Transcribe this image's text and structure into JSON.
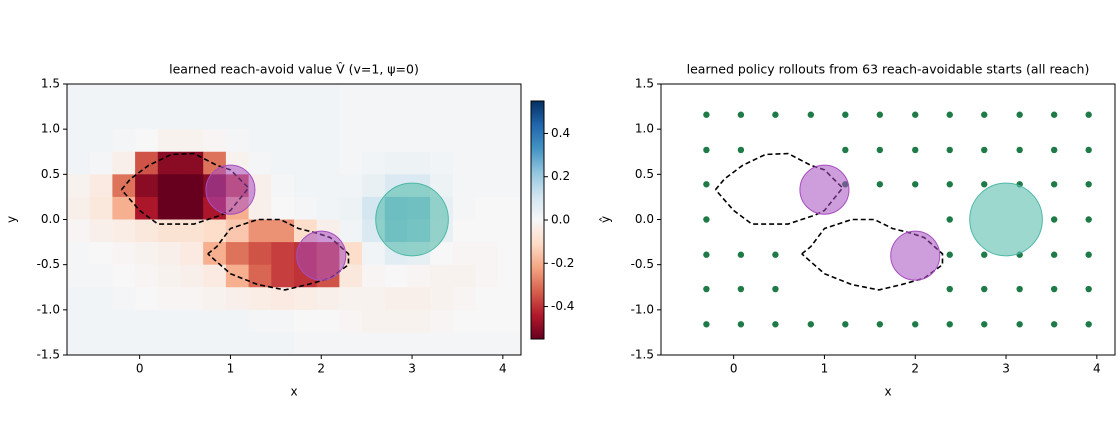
{
  "chart_data": [
    {
      "type": "heatmap",
      "title": "learned reach-avoid value  V̂  (v=1, ψ=0)",
      "xlabel": "x",
      "ylabel": "y",
      "xlim": [
        -0.8,
        4.2
      ],
      "ylim": [
        -1.5,
        1.5
      ],
      "xticks": [
        0,
        1,
        2,
        3,
        4
      ],
      "yticks": [
        -1.5,
        {
          "value": -1,
          "label": "-1.0"
        },
        -0.5,
        {
          "value": 0,
          "label": "0.0"
        },
        0.5,
        {
          "value": 1,
          "label": "1.0"
        },
        1.5
      ],
      "xbins": [
        -0.8,
        -0.55,
        -0.3,
        -0.05,
        0.2,
        0.45,
        0.7,
        0.95,
        1.2,
        1.45,
        1.7,
        1.95,
        2.2,
        2.45,
        2.7,
        2.95,
        3.2,
        3.45,
        3.7,
        3.95,
        4.2
      ],
      "ybins": [
        1.5,
        1.25,
        1,
        0.75,
        0.5,
        0.25,
        0,
        -0.25,
        -0.5,
        -0.75,
        -1,
        -1.25,
        -1.5
      ],
      "z": [
        [
          0.02,
          0.02,
          0.02,
          0.02,
          0.02,
          0.02,
          0.02,
          0.02,
          0.02,
          0.02,
          0.02,
          0.02,
          0.01,
          0.01,
          0.01,
          0.01,
          0.01,
          0.01,
          0.01,
          0.01
        ],
        [
          0.02,
          0.02,
          0.02,
          0.02,
          0.02,
          0.02,
          0.02,
          0.02,
          0.02,
          0.02,
          0.02,
          0.02,
          0.01,
          0.01,
          0.01,
          0.01,
          0.01,
          0.01,
          0.01,
          0.01
        ],
        [
          0.02,
          0.02,
          0.01,
          0,
          -0.02,
          -0.02,
          -0.01,
          0.01,
          0.02,
          0.02,
          0.02,
          0.02,
          0.01,
          0.01,
          0.01,
          0.01,
          0.01,
          0.01,
          0.01,
          0.01
        ],
        [
          0.02,
          0.01,
          -0.03,
          -0.35,
          -0.5,
          -0.5,
          -0.3,
          -0.02,
          0.01,
          0.02,
          0.02,
          0.02,
          0.01,
          0.02,
          0.03,
          0.03,
          0.02,
          0.01,
          0.01,
          0.01
        ],
        [
          -0.02,
          -0.05,
          -0.3,
          -0.5,
          -0.55,
          -0.55,
          -0.5,
          -0.35,
          -0.03,
          0.01,
          0.02,
          0.02,
          0.02,
          0.04,
          0.08,
          0.08,
          0.03,
          0.01,
          0.01,
          0.01
        ],
        [
          -0.03,
          -0.06,
          -0.2,
          -0.45,
          -0.55,
          -0.55,
          -0.45,
          -0.2,
          -0.03,
          0,
          0.01,
          0.02,
          0.03,
          0.1,
          0.22,
          0.2,
          0.05,
          0.01,
          0,
          0
        ],
        [
          -0.01,
          -0.03,
          -0.04,
          -0.06,
          -0.08,
          -0.08,
          -0.1,
          -0.15,
          -0.25,
          -0.25,
          -0.1,
          -0.03,
          0.02,
          0.08,
          0.2,
          0.18,
          0.04,
          0,
          0,
          0
        ],
        [
          0.01,
          0,
          -0.01,
          -0.02,
          -0.03,
          -0.05,
          -0.2,
          -0.3,
          -0.35,
          -0.38,
          -0.4,
          -0.35,
          -0.1,
          0.02,
          0.06,
          0.05,
          0,
          -0.01,
          -0.01,
          0
        ],
        [
          0.01,
          0.01,
          0,
          -0.01,
          -0.02,
          -0.03,
          -0.05,
          -0.2,
          -0.32,
          -0.38,
          -0.4,
          -0.35,
          -0.06,
          -0.01,
          0,
          -0.01,
          -0.02,
          -0.02,
          -0.01,
          0
        ],
        [
          0.02,
          0.02,
          0.01,
          0,
          -0.01,
          -0.01,
          -0.02,
          -0.03,
          -0.04,
          -0.05,
          -0.04,
          -0.03,
          -0.02,
          -0.02,
          -0.03,
          -0.03,
          -0.02,
          -0.01,
          0,
          0
        ],
        [
          0.02,
          0.02,
          0.02,
          0.02,
          0.02,
          0.02,
          0.02,
          0.02,
          0.01,
          0.01,
          0,
          0,
          -0.01,
          -0.02,
          -0.02,
          -0.02,
          -0.01,
          0,
          0,
          0
        ],
        [
          0.02,
          0.02,
          0.02,
          0.02,
          0.02,
          0.02,
          0.02,
          0.02,
          0.02,
          0.02,
          0.01,
          0.01,
          0.01,
          0.01,
          0.01,
          0.01,
          0.01,
          0.01,
          0.01,
          0.01
        ]
      ],
      "colormap": "RdBu",
      "clim": [
        -0.55,
        0.55
      ],
      "cticks": [
        -0.4,
        -0.2,
        {
          "value": 0,
          "label": "0.0"
        },
        0.2,
        0.4
      ],
      "contours": [
        {
          "x": [
            -0.2,
            -0.1,
            0.1,
            0.35,
            0.6,
            0.85,
            1.0,
            1.2,
            1.0,
            0.9,
            0.6,
            0.2,
            0,
            -0.2
          ],
          "y": [
            0.33,
            0.45,
            0.6,
            0.72,
            0.73,
            0.6,
            0.55,
            0.35,
            0.1,
            0.05,
            -0.05,
            -0.05,
            0.1,
            0.33
          ]
        },
        {
          "x": [
            0.75,
            0.85,
            1.0,
            1.3,
            1.55,
            1.75,
            1.95,
            2.1,
            2.3,
            2.3,
            2.1,
            1.85,
            1.6,
            1.3,
            1.0,
            0.75
          ],
          "y": [
            -0.38,
            -0.3,
            -0.1,
            0,
            0,
            -0.1,
            -0.15,
            -0.2,
            -0.38,
            -0.5,
            -0.65,
            -0.72,
            -0.78,
            -0.72,
            -0.6,
            -0.38
          ]
        }
      ],
      "circles": [
        {
          "x": 1,
          "y": 0.33,
          "r": 0.27,
          "color": "#a64dbf"
        },
        {
          "x": 2,
          "y": -0.4,
          "r": 0.27,
          "color": "#a64dbf"
        },
        {
          "x": 3,
          "y": 0,
          "r": 0.4,
          "color": "#4db8a8"
        }
      ]
    },
    {
      "type": "scatter",
      "title": "learned policy rollouts from 63 reach-avoidable starts (all reach)",
      "xlabel": "x",
      "ylabel": "ŷ",
      "xlim": [
        -0.8,
        4.2
      ],
      "ylim": [
        -1.5,
        1.5
      ],
      "xticks": [
        0,
        1,
        2,
        3,
        4
      ],
      "yticks": [
        -1.5,
        {
          "value": -1,
          "label": "-1.0"
        },
        -0.5,
        {
          "value": 0,
          "label": "0.0"
        },
        0.5,
        {
          "value": 1,
          "label": "1.0"
        },
        1.5
      ],
      "color": "#1e7a46",
      "x": [
        -0.3,
        0.08,
        0.46,
        0.85,
        1.23,
        1.61,
        2.0,
        2.38,
        2.76,
        3.15,
        3.53,
        3.91,
        -0.3,
        0.08,
        1.23,
        1.61,
        2.0,
        2.38,
        2.76,
        3.15,
        3.53,
        3.91,
        -0.3,
        1.23,
        1.61,
        2.0,
        2.38,
        2.76,
        3.15,
        3.53,
        3.91,
        -0.3,
        2.38,
        3.53,
        3.91,
        -0.3,
        0.08,
        0.46,
        2.38,
        2.76,
        3.15,
        3.53,
        3.91,
        -0.3,
        0.08,
        0.46,
        2.38,
        2.76,
        3.15,
        3.53,
        3.91,
        -0.3,
        0.08,
        0.46,
        0.85,
        1.23,
        1.61,
        2.0,
        2.38,
        2.76,
        3.15,
        3.53,
        3.91
      ],
      "y": [
        1.16,
        1.16,
        1.16,
        1.16,
        1.16,
        1.16,
        1.16,
        1.16,
        1.16,
        1.16,
        1.16,
        1.16,
        0.77,
        0.77,
        0.77,
        0.77,
        0.77,
        0.77,
        0.77,
        0.77,
        0.77,
        0.77,
        0.39,
        0.39,
        0.39,
        0.39,
        0.39,
        0.39,
        0.39,
        0.39,
        0.39,
        0,
        0,
        0,
        0,
        -0.39,
        -0.39,
        -0.39,
        -0.39,
        -0.39,
        -0.39,
        -0.39,
        -0.39,
        -0.77,
        -0.77,
        -0.77,
        -0.77,
        -0.77,
        -0.77,
        -0.77,
        -0.77,
        -1.16,
        -1.16,
        -1.16,
        -1.16,
        -1.16,
        -1.16,
        -1.16,
        -1.16,
        -1.16,
        -1.16,
        -1.16,
        -1.16
      ],
      "contours": [
        {
          "x": [
            -0.2,
            -0.1,
            0.1,
            0.35,
            0.6,
            0.85,
            1.0,
            1.2,
            1.0,
            0.9,
            0.6,
            0.2,
            0,
            -0.2
          ],
          "y": [
            0.33,
            0.45,
            0.6,
            0.72,
            0.73,
            0.6,
            0.55,
            0.35,
            0.1,
            0.05,
            -0.05,
            -0.05,
            0.1,
            0.33
          ]
        },
        {
          "x": [
            0.75,
            0.85,
            1.0,
            1.3,
            1.55,
            1.75,
            1.95,
            2.1,
            2.3,
            2.3,
            2.1,
            1.85,
            1.6,
            1.3,
            1.0,
            0.75
          ],
          "y": [
            -0.38,
            -0.3,
            -0.1,
            0,
            0,
            -0.1,
            -0.15,
            -0.2,
            -0.38,
            -0.5,
            -0.65,
            -0.72,
            -0.78,
            -0.72,
            -0.6,
            -0.38
          ]
        }
      ],
      "circles": [
        {
          "x": 1,
          "y": 0.33,
          "r": 0.27,
          "color": "#a64dbf"
        },
        {
          "x": 2,
          "y": -0.4,
          "r": 0.27,
          "color": "#a64dbf"
        },
        {
          "x": 3,
          "y": 0,
          "r": 0.4,
          "color": "#4db8a8"
        }
      ]
    }
  ]
}
